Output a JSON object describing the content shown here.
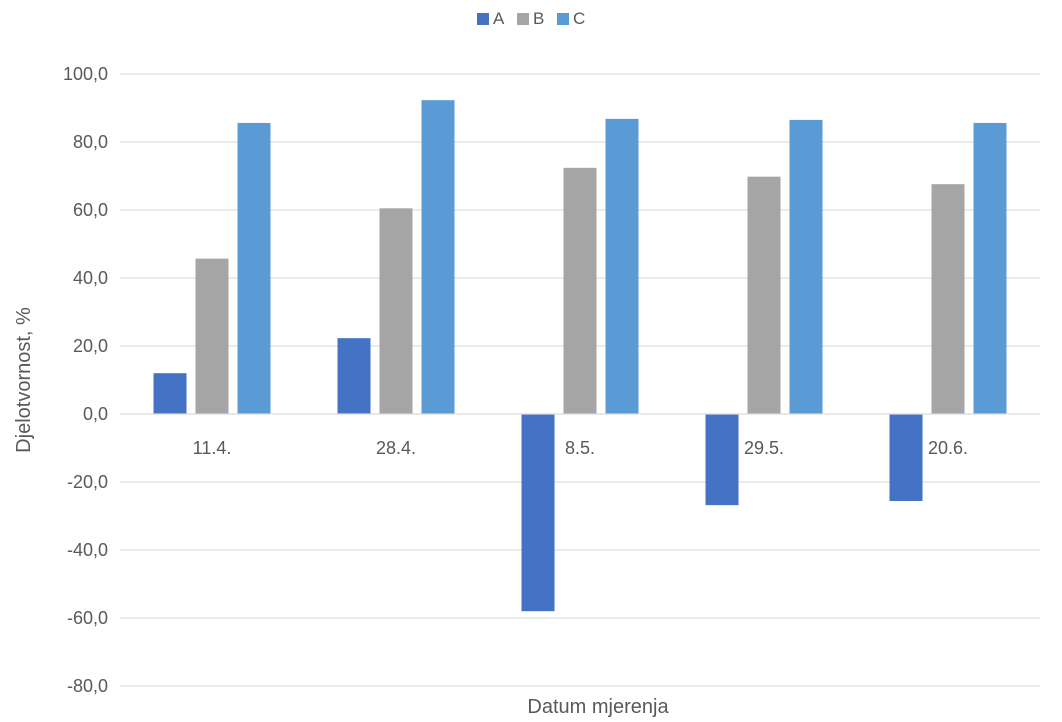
{
  "chart_data": {
    "type": "bar",
    "categories": [
      "11.4.",
      "28.4.",
      "8.5.",
      "29.5.",
      "20.6."
    ],
    "series": [
      {
        "name": "A",
        "values": [
          12.0,
          22.3,
          -58.0,
          -26.8,
          -25.6
        ],
        "color": "#4472C4"
      },
      {
        "name": "B",
        "values": [
          45.7,
          60.5,
          72.4,
          69.8,
          67.6
        ],
        "color": "#A5A5A5"
      },
      {
        "name": "C",
        "values": [
          85.6,
          92.3,
          86.8,
          86.5,
          85.6
        ],
        "color": "#5B9BD5"
      }
    ],
    "xlabel": "Datum mjerenja",
    "ylabel": "Djelotvornost, %",
    "ylim": [
      -80,
      100
    ],
    "yticks": [
      100,
      80,
      60,
      40,
      20,
      0,
      -20,
      -40,
      -60,
      -80
    ],
    "ytick_labels": [
      "100,0",
      "80,0",
      "60,0",
      "40,0",
      "20,0",
      "0,0",
      "-20,0",
      "-40,0",
      "-60,0",
      "-80,0"
    ],
    "grid": true,
    "legend_position": "top"
  }
}
